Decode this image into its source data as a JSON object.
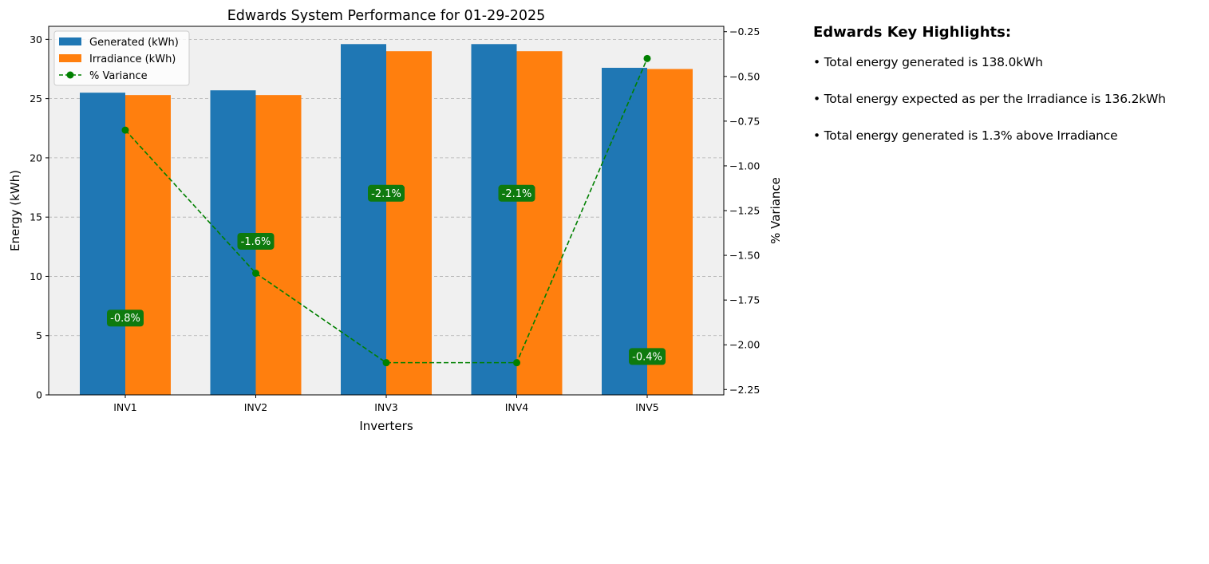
{
  "chart_data": {
    "type": "bar",
    "title": "Edwards System Performance for 01-29-2025",
    "xlabel": "Inverters",
    "ylabel": "Energy (kWh)",
    "y2label": "% Variance",
    "categories": [
      "INV1",
      "INV2",
      "INV3",
      "INV4",
      "INV5"
    ],
    "series": [
      {
        "name": "Generated (kWh)",
        "type": "bar",
        "axis": "left",
        "color": "#1f77b4",
        "values": [
          25.5,
          25.7,
          29.6,
          29.6,
          27.6
        ]
      },
      {
        "name": "Irradiance (kWh)",
        "type": "bar",
        "axis": "left",
        "color": "#ff7f0e",
        "values": [
          25.3,
          25.3,
          29.0,
          29.0,
          27.5
        ]
      },
      {
        "name": "% Variance",
        "type": "line",
        "axis": "right",
        "color": "#008000",
        "linestyle": "dashed",
        "marker": "circle",
        "values": [
          -0.8,
          -1.6,
          -2.1,
          -2.1,
          -0.4
        ]
      }
    ],
    "data_labels": [
      "-0.8%",
      "-1.6%",
      "-2.1%",
      "-2.1%",
      "-0.4%"
    ],
    "ylim": [
      0,
      31.1
    ],
    "yticks": [
      0,
      5,
      10,
      15,
      20,
      25,
      30
    ],
    "y2lim": [
      -2.28,
      -0.22
    ],
    "y2ticks": [
      -2.25,
      -2.0,
      -1.75,
      -1.5,
      -1.25,
      -1.0,
      -0.75,
      -0.5,
      -0.25
    ],
    "y2ticklabels": [
      "−2.25",
      "−2.00",
      "−1.75",
      "−1.50",
      "−1.25",
      "−1.00",
      "−0.75",
      "−0.50",
      "−0.25"
    ],
    "grid": true,
    "grid_axis": "y",
    "legend_position": "top-left",
    "plot_background": "#f0f0f0"
  },
  "highlights": {
    "title": "Edwards Key Highlights:",
    "items": [
      "• Total energy generated is 138.0kWh",
      "• Total energy expected as per the Irradiance is 136.2kWh",
      "• Total energy generated is 1.3% above Irradiance"
    ]
  }
}
